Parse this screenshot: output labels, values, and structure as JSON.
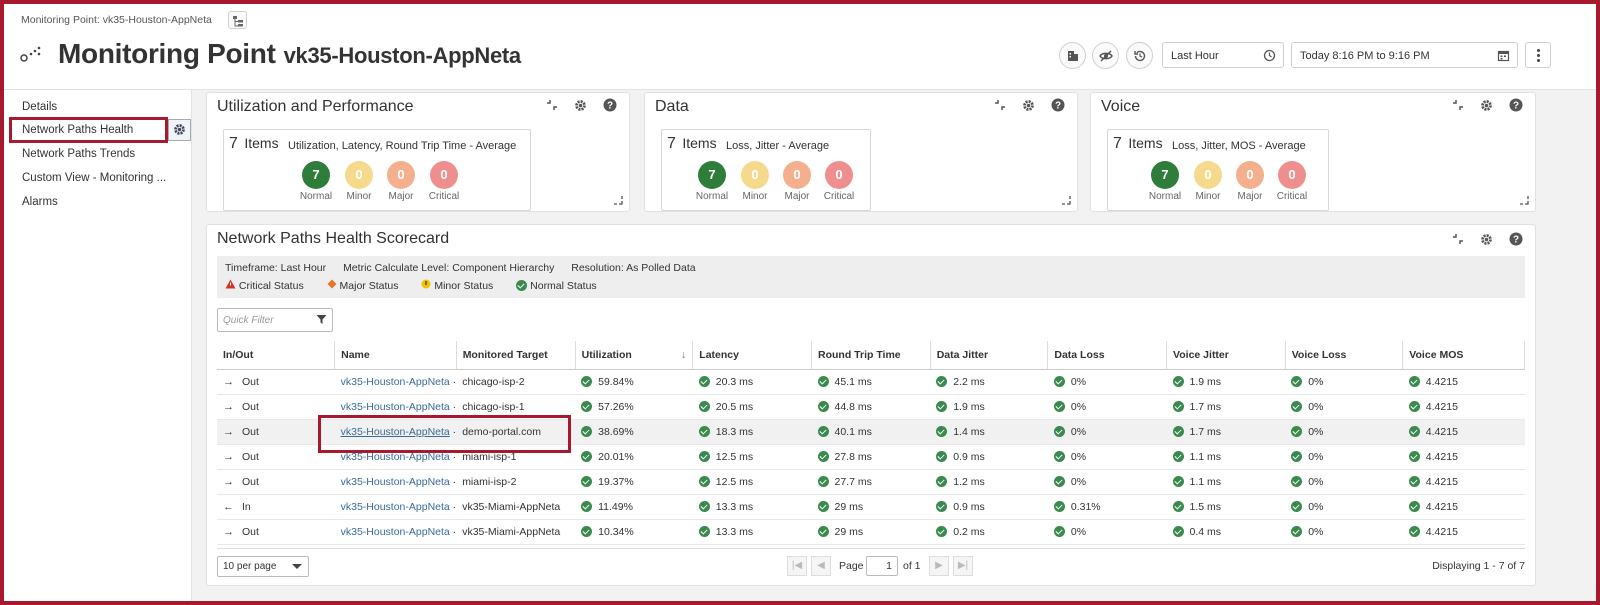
{
  "header": {
    "breadcrumb": "Monitoring Point: vk35-Houston-AppNeta",
    "title": "Monitoring Point",
    "subtitle": "vk35-Houston-AppNeta",
    "time_range": "Last Hour",
    "time_window": "Today 8:16 PM to 9:16 PM"
  },
  "sidebar": {
    "items": [
      {
        "label": "Details"
      },
      {
        "label": "Network Paths Health"
      },
      {
        "label": "Network Paths Trends"
      },
      {
        "label": "Custom View - Monitoring ..."
      },
      {
        "label": "Alarms"
      }
    ]
  },
  "status_labels": {
    "normal": "Normal",
    "minor": "Minor",
    "major": "Major",
    "critical": "Critical"
  },
  "status_colors": {
    "normal": "#2e7d3a",
    "minor": "#f5d98c",
    "major": "#f4b08e",
    "critical": "#ef8e8e",
    "link": "#3a6a9a",
    "accent": "#a6192e"
  },
  "panels": [
    {
      "title": "Utilization and Performance",
      "count": "7",
      "count_label": "Items",
      "desc": "Utilization, Latency, Round Trip Time - Average",
      "normal": "7",
      "minor": "0",
      "major": "0",
      "critical": "0"
    },
    {
      "title": "Data",
      "count": "7",
      "count_label": "Items",
      "desc": "Loss, Jitter - Average",
      "normal": "7",
      "minor": "0",
      "major": "0",
      "critical": "0"
    },
    {
      "title": "Voice",
      "count": "7",
      "count_label": "Items",
      "desc": "Loss, Jitter, MOS - Average",
      "normal": "7",
      "minor": "0",
      "major": "0",
      "critical": "0"
    }
  ],
  "scorecard": {
    "title": "Network Paths Health Scorecard",
    "timeframe": "Timeframe: Last Hour",
    "metric_level": "Metric Calculate Level: Component Hierarchy",
    "resolution": "Resolution: As Polled Data",
    "legend": [
      "Critical Status",
      "Major Status",
      "Minor Status",
      "Normal Status"
    ],
    "quick_filter_placeholder": "Quick Filter",
    "columns": [
      "In/Out",
      "Name",
      "Monitored Target",
      "Utilization",
      "Latency",
      "Round Trip Time",
      "Data Jitter",
      "Data Loss",
      "Voice Jitter",
      "Voice Loss",
      "Voice MOS"
    ],
    "rows": [
      {
        "dir": "Out",
        "arrow": "→",
        "name": "vk35-Houston-AppNeta",
        "target": "chicago-isp-2",
        "util": "59.84%",
        "lat": "20.3 ms",
        "rtt": "45.1 ms",
        "djit": "2.2 ms",
        "dloss": "0%",
        "vjit": "1.9 ms",
        "vloss": "0%",
        "mos": "4.4215"
      },
      {
        "dir": "Out",
        "arrow": "→",
        "name": "vk35-Houston-AppNeta",
        "target": "chicago-isp-1",
        "util": "57.26%",
        "lat": "20.5 ms",
        "rtt": "44.8 ms",
        "djit": "1.9 ms",
        "dloss": "0%",
        "vjit": "1.7 ms",
        "vloss": "0%",
        "mos": "4.4215"
      },
      {
        "dir": "Out",
        "arrow": "→",
        "name": "vk35-Houston-AppNeta",
        "target": "demo-portal.com",
        "util": "38.69%",
        "lat": "18.3 ms",
        "rtt": "40.1 ms",
        "djit": "1.4 ms",
        "dloss": "0%",
        "vjit": "1.7 ms",
        "vloss": "0%",
        "mos": "4.4215"
      },
      {
        "dir": "Out",
        "arrow": "→",
        "name": "vk35-Houston-AppNeta",
        "target": "miami-isp-1",
        "util": "20.01%",
        "lat": "12.5 ms",
        "rtt": "27.8 ms",
        "djit": "0.9 ms",
        "dloss": "0%",
        "vjit": "1.1 ms",
        "vloss": "0%",
        "mos": "4.4215"
      },
      {
        "dir": "Out",
        "arrow": "→",
        "name": "vk35-Houston-AppNeta",
        "target": "miami-isp-2",
        "util": "19.37%",
        "lat": "12.5 ms",
        "rtt": "27.7 ms",
        "djit": "1.2 ms",
        "dloss": "0%",
        "vjit": "1.1 ms",
        "vloss": "0%",
        "mos": "4.4215"
      },
      {
        "dir": "In",
        "arrow": "←",
        "name": "vk35-Houston-AppNeta",
        "target": "vk35-Miami-AppNeta",
        "util": "11.49%",
        "lat": "13.3 ms",
        "rtt": "29 ms",
        "djit": "0.9 ms",
        "dloss": "0.31%",
        "vjit": "1.5 ms",
        "vloss": "0%",
        "mos": "4.4215"
      },
      {
        "dir": "Out",
        "arrow": "→",
        "name": "vk35-Houston-AppNeta",
        "target": "vk35-Miami-AppNeta",
        "util": "10.34%",
        "lat": "13.3 ms",
        "rtt": "29 ms",
        "djit": "0.2 ms",
        "dloss": "0%",
        "vjit": "0.4 ms",
        "vloss": "0%",
        "mos": "4.4215"
      }
    ],
    "pager": {
      "per_page": "10 per page",
      "page_label": "Page",
      "page": "1",
      "of_label": "of 1",
      "displaying": "Displaying 1 - 7 of 7"
    }
  }
}
